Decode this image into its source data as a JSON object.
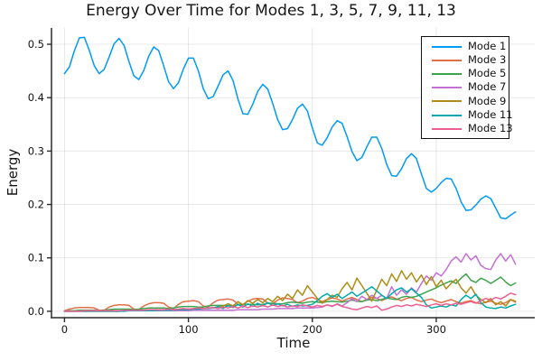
{
  "colors": {
    "background": "#FFFFFF",
    "axis": "#2B2B2B",
    "grid": "rgba(0,0,0,0.09)",
    "tick_label": "#111111",
    "legend_border": "#111111"
  },
  "chart_data": {
    "type": "line",
    "title": "Energy Over Time for Modes 1, 3, 5, 7, 9, 11, 13",
    "xlabel": "Time",
    "ylabel": "Energy",
    "xlim": [
      -10.5,
      379.5
    ],
    "ylim": [
      -0.012,
      0.5305
    ],
    "grid": true,
    "legend_position": "top-right",
    "xticks": {
      "values": [
        0,
        100,
        200,
        300
      ],
      "labels": [
        "0",
        "100",
        "200",
        "300"
      ]
    },
    "yticks": {
      "values": [
        0,
        0.1,
        0.2,
        0.3,
        0.4,
        0.5
      ],
      "labels": [
        "0.0",
        "0.1",
        "0.2",
        "0.3",
        "0.4",
        "0.5"
      ]
    },
    "x": [
      0,
      4,
      8,
      12,
      16,
      20,
      24,
      28,
      32,
      36,
      40,
      44,
      48,
      52,
      56,
      60,
      64,
      68,
      72,
      76,
      80,
      84,
      88,
      92,
      96,
      100,
      104,
      108,
      112,
      116,
      120,
      124,
      128,
      132,
      136,
      140,
      144,
      148,
      152,
      156,
      160,
      164,
      168,
      172,
      176,
      180,
      184,
      188,
      192,
      196,
      200,
      204,
      208,
      212,
      216,
      220,
      224,
      228,
      232,
      236,
      240,
      244,
      248,
      252,
      256,
      260,
      264,
      268,
      272,
      276,
      280,
      284,
      288,
      292,
      296,
      300,
      304,
      308,
      312,
      316,
      320,
      324,
      328,
      332,
      336,
      340,
      344,
      348,
      352,
      356,
      360,
      364
    ],
    "series": [
      {
        "name": "Mode 1",
        "color": "#009AFA",
        "values": [
          0.445,
          0.458,
          0.488,
          0.512,
          0.513,
          0.489,
          0.46,
          0.445,
          0.453,
          0.476,
          0.501,
          0.511,
          0.498,
          0.468,
          0.441,
          0.434,
          0.451,
          0.478,
          0.495,
          0.488,
          0.46,
          0.43,
          0.417,
          0.428,
          0.454,
          0.474,
          0.474,
          0.45,
          0.417,
          0.398,
          0.402,
          0.422,
          0.443,
          0.45,
          0.432,
          0.397,
          0.37,
          0.369,
          0.388,
          0.412,
          0.425,
          0.416,
          0.389,
          0.359,
          0.34,
          0.342,
          0.359,
          0.38,
          0.388,
          0.375,
          0.343,
          0.315,
          0.311,
          0.325,
          0.345,
          0.357,
          0.352,
          0.327,
          0.299,
          0.282,
          0.288,
          0.308,
          0.326,
          0.326,
          0.305,
          0.275,
          0.254,
          0.253,
          0.267,
          0.286,
          0.295,
          0.286,
          0.257,
          0.23,
          0.223,
          0.23,
          0.241,
          0.249,
          0.248,
          0.23,
          0.205,
          0.189,
          0.19,
          0.199,
          0.21,
          0.216,
          0.211,
          0.193,
          0.175,
          0.173,
          0.18,
          0.186
        ]
      },
      {
        "name": "Mode 3",
        "color": "#E36F47",
        "values": [
          0.001,
          0.004,
          0.006,
          0.007,
          0.007,
          0.007,
          0.006,
          0.002,
          0.002,
          0.008,
          0.011,
          0.012,
          0.012,
          0.011,
          0.004,
          0.003,
          0.01,
          0.014,
          0.016,
          0.016,
          0.015,
          0.008,
          0.005,
          0.013,
          0.018,
          0.019,
          0.02,
          0.018,
          0.01,
          0.008,
          0.016,
          0.021,
          0.022,
          0.023,
          0.021,
          0.013,
          0.012,
          0.019,
          0.023,
          0.024,
          0.023,
          0.015,
          0.014,
          0.021,
          0.025,
          0.024,
          0.022,
          0.016,
          0.019,
          0.024,
          0.026,
          0.022,
          0.018,
          0.022,
          0.025,
          0.023,
          0.019,
          0.023,
          0.026,
          0.022,
          0.018,
          0.022,
          0.026,
          0.024,
          0.02,
          0.024,
          0.027,
          0.023,
          0.02,
          0.024,
          0.026,
          0.021,
          0.018,
          0.021,
          0.023,
          0.019,
          0.016,
          0.019,
          0.022,
          0.018,
          0.015,
          0.018,
          0.02,
          0.016,
          0.014,
          0.017,
          0.019,
          0.015,
          0.013,
          0.016,
          0.022,
          0.017
        ]
      },
      {
        "name": "Mode 5",
        "color": "#3DA44E",
        "values": [
          0.0,
          0.001,
          0.001,
          0.002,
          0.002,
          0.002,
          0.002,
          0.001,
          0.002,
          0.003,
          0.004,
          0.004,
          0.004,
          0.004,
          0.003,
          0.004,
          0.005,
          0.006,
          0.006,
          0.006,
          0.006,
          0.005,
          0.006,
          0.008,
          0.009,
          0.009,
          0.009,
          0.008,
          0.008,
          0.01,
          0.011,
          0.011,
          0.011,
          0.01,
          0.01,
          0.012,
          0.013,
          0.013,
          0.013,
          0.012,
          0.013,
          0.015,
          0.015,
          0.014,
          0.014,
          0.016,
          0.017,
          0.016,
          0.015,
          0.017,
          0.018,
          0.017,
          0.016,
          0.018,
          0.019,
          0.018,
          0.017,
          0.019,
          0.021,
          0.019,
          0.018,
          0.021,
          0.022,
          0.02,
          0.022,
          0.025,
          0.023,
          0.022,
          0.026,
          0.028,
          0.026,
          0.028,
          0.032,
          0.036,
          0.04,
          0.044,
          0.049,
          0.053,
          0.057,
          0.052,
          0.062,
          0.07,
          0.058,
          0.054,
          0.062,
          0.058,
          0.052,
          0.058,
          0.064,
          0.055,
          0.048,
          0.053
        ]
      },
      {
        "name": "Mode 7",
        "color": "#C371D2",
        "values": [
          0.0,
          0.0,
          0.0,
          0.0,
          0.0,
          0.0,
          0.0,
          0.0,
          0.0,
          0.0,
          0.0,
          0.0,
          0.001,
          0.001,
          0.001,
          0.001,
          0.001,
          0.001,
          0.001,
          0.001,
          0.001,
          0.001,
          0.001,
          0.001,
          0.001,
          0.001,
          0.002,
          0.002,
          0.002,
          0.002,
          0.002,
          0.002,
          0.002,
          0.002,
          0.002,
          0.003,
          0.003,
          0.003,
          0.003,
          0.003,
          0.004,
          0.004,
          0.004,
          0.005,
          0.005,
          0.005,
          0.005,
          0.006,
          0.006,
          0.006,
          0.006,
          0.007,
          0.008,
          0.012,
          0.009,
          0.014,
          0.01,
          0.016,
          0.024,
          0.018,
          0.028,
          0.022,
          0.03,
          0.024,
          0.03,
          0.024,
          0.046,
          0.03,
          0.04,
          0.032,
          0.044,
          0.036,
          0.052,
          0.066,
          0.058,
          0.072,
          0.066,
          0.078,
          0.094,
          0.102,
          0.092,
          0.108,
          0.096,
          0.104,
          0.086,
          0.08,
          0.078,
          0.096,
          0.108,
          0.094,
          0.106,
          0.088
        ]
      },
      {
        "name": "Mode 9",
        "color": "#AC8D18",
        "values": [
          0.0,
          0.0,
          0.0,
          0.0,
          0.0,
          0.0,
          0.0,
          0.0,
          0.0,
          0.0,
          0.0,
          0.0,
          0.001,
          0.001,
          0.001,
          0.001,
          0.001,
          0.001,
          0.002,
          0.002,
          0.002,
          0.002,
          0.003,
          0.003,
          0.003,
          0.004,
          0.004,
          0.005,
          0.005,
          0.006,
          0.006,
          0.008,
          0.01,
          0.014,
          0.01,
          0.018,
          0.012,
          0.02,
          0.015,
          0.022,
          0.016,
          0.024,
          0.018,
          0.028,
          0.02,
          0.032,
          0.024,
          0.04,
          0.03,
          0.048,
          0.036,
          0.024,
          0.015,
          0.022,
          0.03,
          0.026,
          0.042,
          0.054,
          0.04,
          0.062,
          0.048,
          0.034,
          0.019,
          0.04,
          0.06,
          0.048,
          0.07,
          0.056,
          0.076,
          0.06,
          0.072,
          0.055,
          0.068,
          0.05,
          0.065,
          0.046,
          0.058,
          0.042,
          0.052,
          0.06,
          0.044,
          0.034,
          0.046,
          0.03,
          0.022,
          0.016,
          0.024,
          0.012,
          0.018,
          0.01,
          0.022,
          0.019
        ]
      },
      {
        "name": "Mode 11",
        "color": "#00AAAE",
        "values": [
          0.0,
          0.0,
          0.0,
          0.0,
          0.0,
          0.0,
          0.0,
          0.0,
          0.0,
          0.0,
          0.0,
          0.0,
          0.0,
          0.001,
          0.001,
          0.001,
          0.001,
          0.001,
          0.001,
          0.002,
          0.002,
          0.002,
          0.002,
          0.003,
          0.003,
          0.003,
          0.004,
          0.004,
          0.005,
          0.005,
          0.006,
          0.009,
          0.005,
          0.011,
          0.007,
          0.013,
          0.008,
          0.014,
          0.009,
          0.015,
          0.01,
          0.016,
          0.011,
          0.014,
          0.01,
          0.013,
          0.009,
          0.012,
          0.01,
          0.011,
          0.013,
          0.02,
          0.028,
          0.033,
          0.026,
          0.032,
          0.024,
          0.03,
          0.036,
          0.028,
          0.034,
          0.04,
          0.046,
          0.038,
          0.03,
          0.024,
          0.033,
          0.04,
          0.044,
          0.036,
          0.042,
          0.034,
          0.026,
          0.012,
          0.006,
          0.008,
          0.01,
          0.008,
          0.012,
          0.01,
          0.022,
          0.03,
          0.024,
          0.032,
          0.016,
          0.008,
          0.006,
          0.005,
          0.008,
          0.006,
          0.01,
          0.013
        ]
      },
      {
        "name": "Mode 13",
        "color": "#ED5E93",
        "values": [
          0.0,
          0.0,
          0.0,
          0.0,
          0.001,
          0.001,
          0.001,
          0.001,
          0.001,
          0.001,
          0.001,
          0.001,
          0.002,
          0.002,
          0.002,
          0.002,
          0.002,
          0.003,
          0.003,
          0.003,
          0.003,
          0.004,
          0.003,
          0.004,
          0.005,
          0.004,
          0.005,
          0.006,
          0.005,
          0.006,
          0.007,
          0.005,
          0.008,
          0.006,
          0.009,
          0.006,
          0.01,
          0.007,
          0.01,
          0.008,
          0.011,
          0.008,
          0.012,
          0.009,
          0.011,
          0.008,
          0.01,
          0.009,
          0.012,
          0.01,
          0.008,
          0.011,
          0.009,
          0.012,
          0.01,
          0.013,
          0.009,
          0.007,
          0.004,
          0.003,
          0.006,
          0.009,
          0.007,
          0.01,
          0.002,
          0.004,
          0.008,
          0.011,
          0.009,
          0.012,
          0.01,
          0.013,
          0.011,
          0.009,
          0.012,
          0.014,
          0.011,
          0.014,
          0.012,
          0.015,
          0.013,
          0.016,
          0.018,
          0.015,
          0.02,
          0.024,
          0.021,
          0.026,
          0.023,
          0.028,
          0.034,
          0.031
        ]
      }
    ]
  }
}
